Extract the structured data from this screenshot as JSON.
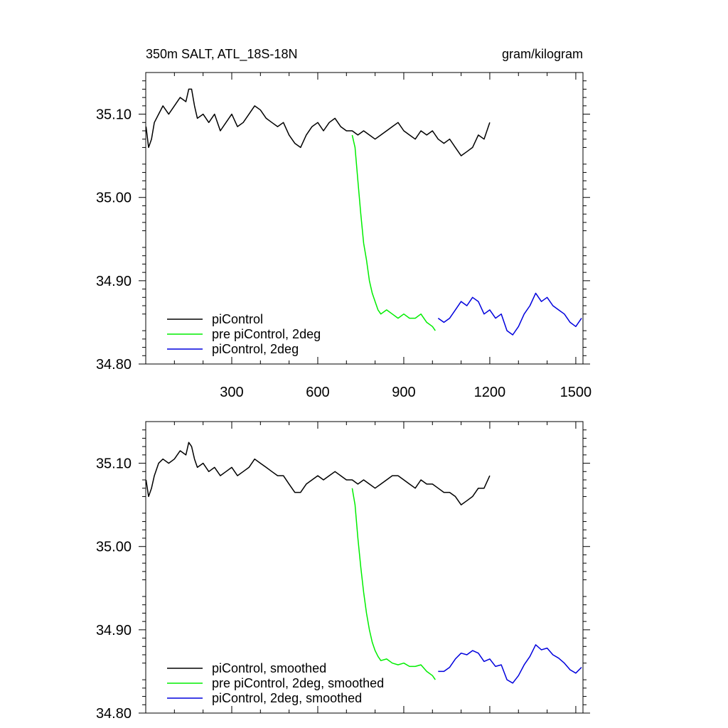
{
  "figure": {
    "title_left": "350m SALT, ATL_18S-18N",
    "title_right": "gram/kilogram"
  },
  "chart_data": [
    {
      "type": "line",
      "title": "350m SALT, ATL_18S-18N",
      "units": "gram/kilogram",
      "xlim": [
        0,
        1525
      ],
      "ylim": [
        34.8,
        35.15
      ],
      "x_ticks": [
        300,
        600,
        900,
        1200,
        1500
      ],
      "x_tick_labels": [
        "300",
        "600",
        "900",
        "1200",
        "1500"
      ],
      "y_ticks": [
        34.8,
        34.9,
        35.0,
        35.1
      ],
      "y_tick_labels": [
        "34.80",
        "34.90",
        "35.00",
        "35.10"
      ],
      "grid": false,
      "legend_position": "bottom-left",
      "series": [
        {
          "name": "piControl",
          "color": "#000000",
          "x": [
            1,
            10,
            20,
            30,
            45,
            60,
            80,
            100,
            120,
            140,
            150,
            160,
            170,
            180,
            200,
            220,
            240,
            260,
            280,
            300,
            320,
            340,
            360,
            380,
            400,
            420,
            440,
            460,
            480,
            500,
            520,
            540,
            560,
            580,
            600,
            620,
            640,
            660,
            680,
            700,
            720,
            740,
            760,
            780,
            800,
            820,
            840,
            860,
            880,
            900,
            920,
            940,
            960,
            980,
            1000,
            1020,
            1040,
            1060,
            1080,
            1100,
            1120,
            1140,
            1160,
            1180,
            1200
          ],
          "y": [
            35.085,
            35.06,
            35.07,
            35.09,
            35.1,
            35.11,
            35.1,
            35.11,
            35.12,
            35.115,
            35.13,
            35.13,
            35.11,
            35.095,
            35.1,
            35.09,
            35.1,
            35.08,
            35.09,
            35.1,
            35.085,
            35.09,
            35.1,
            35.11,
            35.105,
            35.095,
            35.09,
            35.085,
            35.09,
            35.075,
            35.065,
            35.06,
            35.075,
            35.085,
            35.09,
            35.08,
            35.09,
            35.095,
            35.085,
            35.08,
            35.08,
            35.075,
            35.08,
            35.075,
            35.07,
            35.075,
            35.08,
            35.085,
            35.09,
            35.08,
            35.075,
            35.07,
            35.08,
            35.075,
            35.08,
            35.07,
            35.065,
            35.07,
            35.06,
            35.05,
            35.055,
            35.06,
            35.075,
            35.07,
            35.09
          ]
        },
        {
          "name": "pre piControl, 2deg",
          "color": "#00ee00",
          "x": [
            720,
            730,
            740,
            750,
            760,
            770,
            780,
            790,
            800,
            810,
            820,
            840,
            860,
            880,
            900,
            920,
            940,
            960,
            980,
            1000,
            1010
          ],
          "y": [
            35.075,
            35.06,
            35.02,
            34.98,
            34.945,
            34.925,
            34.9,
            34.885,
            34.875,
            34.865,
            34.86,
            34.865,
            34.86,
            34.855,
            34.86,
            34.855,
            34.855,
            34.86,
            34.85,
            34.845,
            34.84
          ]
        },
        {
          "name": "piControl, 2deg",
          "color": "#0000dd",
          "x": [
            1020,
            1040,
            1060,
            1080,
            1100,
            1120,
            1140,
            1160,
            1180,
            1200,
            1220,
            1240,
            1260,
            1280,
            1300,
            1320,
            1340,
            1360,
            1380,
            1400,
            1420,
            1440,
            1460,
            1480,
            1500,
            1520
          ],
          "y": [
            34.855,
            34.85,
            34.855,
            34.865,
            34.875,
            34.87,
            34.88,
            34.875,
            34.86,
            34.865,
            34.855,
            34.86,
            34.84,
            34.835,
            34.845,
            34.86,
            34.87,
            34.885,
            34.875,
            34.88,
            34.87,
            34.865,
            34.86,
            34.85,
            34.845,
            34.855
          ]
        }
      ]
    },
    {
      "type": "line",
      "xlim": [
        0,
        1525
      ],
      "ylim": [
        34.8,
        35.15
      ],
      "x_ticks": [
        300,
        600,
        900,
        1200,
        1500
      ],
      "y_ticks": [
        34.8,
        34.9,
        35.0,
        35.1
      ],
      "y_tick_labels": [
        "34.80",
        "34.90",
        "35.00",
        "35.10"
      ],
      "grid": false,
      "legend_position": "bottom-left",
      "series": [
        {
          "name": "piControl, smoothed",
          "color": "#000000",
          "x": [
            1,
            10,
            20,
            30,
            45,
            60,
            80,
            100,
            120,
            140,
            150,
            160,
            170,
            180,
            200,
            220,
            240,
            260,
            280,
            300,
            320,
            340,
            360,
            380,
            400,
            420,
            440,
            460,
            480,
            500,
            520,
            540,
            560,
            580,
            600,
            620,
            640,
            660,
            680,
            700,
            720,
            740,
            760,
            780,
            800,
            820,
            840,
            860,
            880,
            900,
            920,
            940,
            960,
            980,
            1000,
            1020,
            1040,
            1060,
            1080,
            1100,
            1120,
            1140,
            1160,
            1180,
            1200
          ],
          "y": [
            35.08,
            35.06,
            35.07,
            35.085,
            35.1,
            35.105,
            35.1,
            35.105,
            35.115,
            35.11,
            35.125,
            35.12,
            35.105,
            35.095,
            35.1,
            35.09,
            35.095,
            35.085,
            35.09,
            35.095,
            35.085,
            35.09,
            35.095,
            35.105,
            35.1,
            35.095,
            35.09,
            35.085,
            35.085,
            35.075,
            35.065,
            35.065,
            35.075,
            35.08,
            35.085,
            35.08,
            35.085,
            35.09,
            35.085,
            35.08,
            35.08,
            35.075,
            35.08,
            35.075,
            35.07,
            35.075,
            35.08,
            35.085,
            35.085,
            35.08,
            35.075,
            35.07,
            35.08,
            35.075,
            35.075,
            35.07,
            35.065,
            35.065,
            35.06,
            35.05,
            35.055,
            35.06,
            35.07,
            35.07,
            35.085
          ]
        },
        {
          "name": "pre piControl, 2deg, smoothed",
          "color": "#00ee00",
          "x": [
            720,
            730,
            740,
            750,
            760,
            770,
            780,
            790,
            800,
            810,
            820,
            840,
            860,
            880,
            900,
            920,
            940,
            960,
            980,
            1000,
            1010
          ],
          "y": [
            35.07,
            35.05,
            35.01,
            34.975,
            34.945,
            34.92,
            34.9,
            34.885,
            34.875,
            34.868,
            34.863,
            34.865,
            34.86,
            34.858,
            34.86,
            34.856,
            34.856,
            34.858,
            34.85,
            34.845,
            34.84
          ]
        },
        {
          "name": "piControl, 2deg, smoothed",
          "color": "#0000dd",
          "x": [
            1020,
            1040,
            1060,
            1080,
            1100,
            1120,
            1140,
            1160,
            1180,
            1200,
            1220,
            1240,
            1260,
            1280,
            1300,
            1320,
            1340,
            1360,
            1380,
            1400,
            1420,
            1440,
            1460,
            1480,
            1500,
            1520
          ],
          "y": [
            34.85,
            34.85,
            34.855,
            34.865,
            34.872,
            34.87,
            34.875,
            34.872,
            34.862,
            34.865,
            34.856,
            34.858,
            34.84,
            34.836,
            34.845,
            34.858,
            34.868,
            34.882,
            34.876,
            34.878,
            34.87,
            34.866,
            34.86,
            34.852,
            34.848,
            34.855
          ]
        }
      ]
    }
  ]
}
